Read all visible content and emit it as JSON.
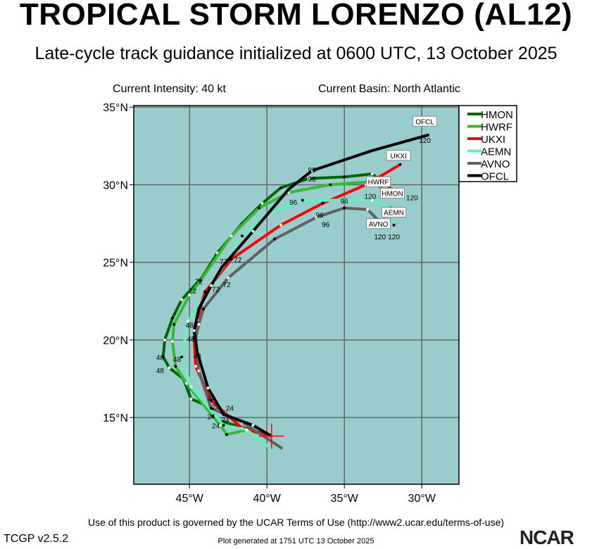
{
  "chart_data": {
    "type": "line",
    "title": "TROPICAL STORM LORENZO (AL12)",
    "subtitle": "Late-cycle track guidance initialized at 0600 UTC, 13 October 2025",
    "current_intensity": "Current Intensity: 40 kt",
    "current_basin": "Current Basin: North Atlantic",
    "xlim": [
      -48.6,
      -27.6
    ],
    "ylim": [
      10.7,
      35.1
    ],
    "xticks": [
      {
        "v": -45,
        "label": "45°W"
      },
      {
        "v": -40,
        "label": "40°W"
      },
      {
        "v": -35,
        "label": "35°W"
      },
      {
        "v": -30,
        "label": "30°W"
      }
    ],
    "yticks": [
      {
        "v": 35,
        "label": "35°N"
      },
      {
        "v": 30,
        "label": "30°N"
      },
      {
        "v": 25,
        "label": "25°N"
      },
      {
        "v": 20,
        "label": "20°N"
      },
      {
        "v": 15,
        "label": "15°N"
      }
    ],
    "grid": true,
    "legend_position": "right",
    "initial_position": [
      -39.7,
      13.8
    ],
    "series": [
      {
        "name": "HMON",
        "color": "#006400",
        "points": [
          [
            -39.7,
            13.8
          ],
          [
            -43.4,
            14.9
          ],
          [
            -43.7,
            15.7
          ],
          [
            -44.9,
            16.2
          ],
          [
            -45.4,
            17.5
          ],
          [
            -46.3,
            18.2
          ],
          [
            -46.7,
            18.9
          ],
          [
            -46.6,
            20.0
          ],
          [
            -46.1,
            21.4
          ],
          [
            -45.5,
            22.6
          ],
          [
            -44.2,
            24.0
          ],
          [
            -43.2,
            25.6
          ],
          [
            -41.6,
            27.5
          ],
          [
            -40.3,
            28.8
          ],
          [
            -39.1,
            29.8
          ],
          [
            -37.3,
            30.4
          ],
          [
            -35.0,
            30.5
          ],
          [
            -33.2,
            30.7
          ],
          [
            -31.8,
            29.6
          ]
        ]
      },
      {
        "name": "HWRF",
        "color": "#33bb33",
        "points": [
          [
            -39.7,
            13.8
          ],
          [
            -41.3,
            14.2
          ],
          [
            -42.6,
            13.9
          ],
          [
            -43.0,
            14.5
          ],
          [
            -43.5,
            15.1
          ],
          [
            -45.2,
            17.2
          ],
          [
            -45.9,
            18.3
          ],
          [
            -46.1,
            19.9
          ],
          [
            -46.0,
            21.0
          ],
          [
            -45.0,
            22.9
          ],
          [
            -44.3,
            23.8
          ],
          [
            -42.3,
            26.7
          ],
          [
            -40.5,
            28.5
          ],
          [
            -38.6,
            29.5
          ],
          [
            -35.9,
            30.0
          ],
          [
            -33.2,
            30.2
          ],
          [
            -32.5,
            29.7
          ]
        ]
      },
      {
        "name": "UKXI",
        "color": "#ff0000",
        "points": [
          [
            -39.7,
            13.8
          ],
          [
            -41.6,
            14.3
          ],
          [
            -43.6,
            16.1
          ],
          [
            -44.6,
            18.3
          ],
          [
            -44.7,
            20.1
          ],
          [
            -44.5,
            21.3
          ],
          [
            -44.0,
            23.1
          ],
          [
            -43.4,
            23.8
          ],
          [
            -42.3,
            25.2
          ],
          [
            -39.1,
            27.4
          ],
          [
            -36.4,
            28.8
          ],
          [
            -33.6,
            30.0
          ],
          [
            -31.4,
            31.3
          ]
        ]
      },
      {
        "name": "AEMN",
        "color": "#66eebb",
        "points": [
          [
            -39.5,
            12.8
          ],
          [
            -41.3,
            14.2
          ],
          [
            -42.8,
            14.5
          ],
          [
            -44.9,
            17.0
          ],
          [
            -45.5,
            18.9
          ],
          [
            -45.1,
            21.2
          ],
          [
            -44.2,
            22.4
          ],
          [
            -43.6,
            23.5
          ],
          [
            -41.6,
            26.7
          ],
          [
            -40.0,
            28.1
          ],
          [
            -37.7,
            29.0
          ],
          [
            -33.2,
            29.0
          ],
          [
            -32.0,
            28.5
          ],
          [
            -31.8,
            27.4
          ]
        ]
      },
      {
        "name": "AVNO",
        "color": "#606060",
        "points": [
          [
            -39.0,
            13.0
          ],
          [
            -41.6,
            14.7
          ],
          [
            -43.6,
            15.6
          ],
          [
            -44.4,
            18.0
          ],
          [
            -44.6,
            20.1
          ],
          [
            -44.4,
            21.0
          ],
          [
            -44.1,
            22.0
          ],
          [
            -42.5,
            24.0
          ],
          [
            -39.5,
            26.5
          ],
          [
            -36.8,
            27.9
          ],
          [
            -35.0,
            28.5
          ],
          [
            -33.5,
            28.4
          ],
          [
            -32.5,
            27.4
          ]
        ]
      },
      {
        "name": "OFCL",
        "color": "#000000",
        "points": [
          [
            -39.7,
            13.8
          ],
          [
            -40.9,
            14.5
          ],
          [
            -42.8,
            15.2
          ],
          [
            -43.8,
            16.9
          ],
          [
            -44.5,
            19.2
          ],
          [
            -44.7,
            20.6
          ],
          [
            -44.4,
            22.0
          ],
          [
            -43.6,
            23.5
          ],
          [
            -42.9,
            24.7
          ],
          [
            -40.9,
            27.0
          ],
          [
            -38.6,
            29.7
          ],
          [
            -37.1,
            30.9
          ],
          [
            -33.2,
            32.2
          ],
          [
            -29.6,
            33.2
          ]
        ]
      }
    ],
    "end_labels": [
      {
        "text": "OFCL",
        "at": [
          -29.8,
          34.0
        ]
      },
      {
        "text": "UKXI",
        "at": [
          -31.5,
          31.8
        ]
      },
      {
        "text": "HWRF",
        "at": [
          -32.8,
          30.1
        ]
      },
      {
        "text": "HMON",
        "at": [
          -31.9,
          30.0
        ]
      },
      {
        "text": "AVNO",
        "at": [
          -32.8,
          27.4
        ]
      },
      {
        "text": "AEMN",
        "at": [
          -31.8,
          27.5
        ]
      }
    ],
    "tau_labels": [
      {
        "text": "120",
        "at": [
          -29.8,
          32.7
        ]
      },
      {
        "text": "120",
        "at": [
          -32.7,
          29.1
        ]
      },
      {
        "text": "120",
        "at": [
          -31.9,
          29.0
        ]
      },
      {
        "text": "120",
        "at": [
          -32.7,
          26.8
        ]
      },
      {
        "text": "120",
        "at": [
          -31.8,
          26.8
        ]
      },
      {
        "text": "96",
        "at": [
          -37.1,
          30.8
        ]
      },
      {
        "text": "96",
        "at": [
          -37.1,
          30.2
        ]
      },
      {
        "text": "96",
        "at": [
          -38.3,
          28.7
        ]
      },
      {
        "text": "96",
        "at": [
          -35.0,
          28.8
        ]
      },
      {
        "text": "96",
        "at": [
          -36.6,
          27.9
        ]
      },
      {
        "text": "96",
        "at": [
          -36.2,
          27.6
        ]
      },
      {
        "text": "72",
        "at": [
          -42.8,
          24.9
        ]
      },
      {
        "text": "72",
        "at": [
          -42.2,
          25.0
        ]
      },
      {
        "text": "72",
        "at": [
          -44.4,
          23.6
        ]
      },
      {
        "text": "72",
        "at": [
          -44.8,
          23.0
        ]
      },
      {
        "text": "72",
        "at": [
          -43.3,
          23.1
        ]
      },
      {
        "text": "72",
        "at": [
          -42.6,
          23.4
        ]
      },
      {
        "text": "48",
        "at": [
          -45.0,
          20.8
        ]
      },
      {
        "text": "48",
        "at": [
          -44.9,
          19.9
        ]
      },
      {
        "text": "48",
        "at": [
          -44.5,
          18.8
        ]
      },
      {
        "text": "48",
        "at": [
          -46.9,
          18.7
        ]
      },
      {
        "text": "48",
        "at": [
          -46.9,
          18.5
        ]
      },
      {
        "text": "48",
        "at": [
          -45.8,
          18.6
        ]
      },
      {
        "text": "24",
        "at": [
          -43.6,
          16.1
        ]
      },
      {
        "text": "24",
        "at": [
          -43.3,
          15.5
        ]
      },
      {
        "text": "24",
        "at": [
          -43.6,
          14.9
        ]
      },
      {
        "text": "24",
        "at": [
          -43.0,
          14.7
        ]
      },
      {
        "text": "24",
        "at": [
          -42.4,
          14.8
        ]
      },
      {
        "text": "24",
        "at": [
          -43.3,
          14.3
        ]
      }
    ]
  },
  "footer": {
    "terms": "Use of this product is governed by the UCAR Terms of Use (http://www2.ucar.edu/terms-of-use)",
    "generated": "Plot generated at 1751 UTC   13 October 2025",
    "version": "TCGP v2.5.2",
    "logo": "NCAR"
  }
}
